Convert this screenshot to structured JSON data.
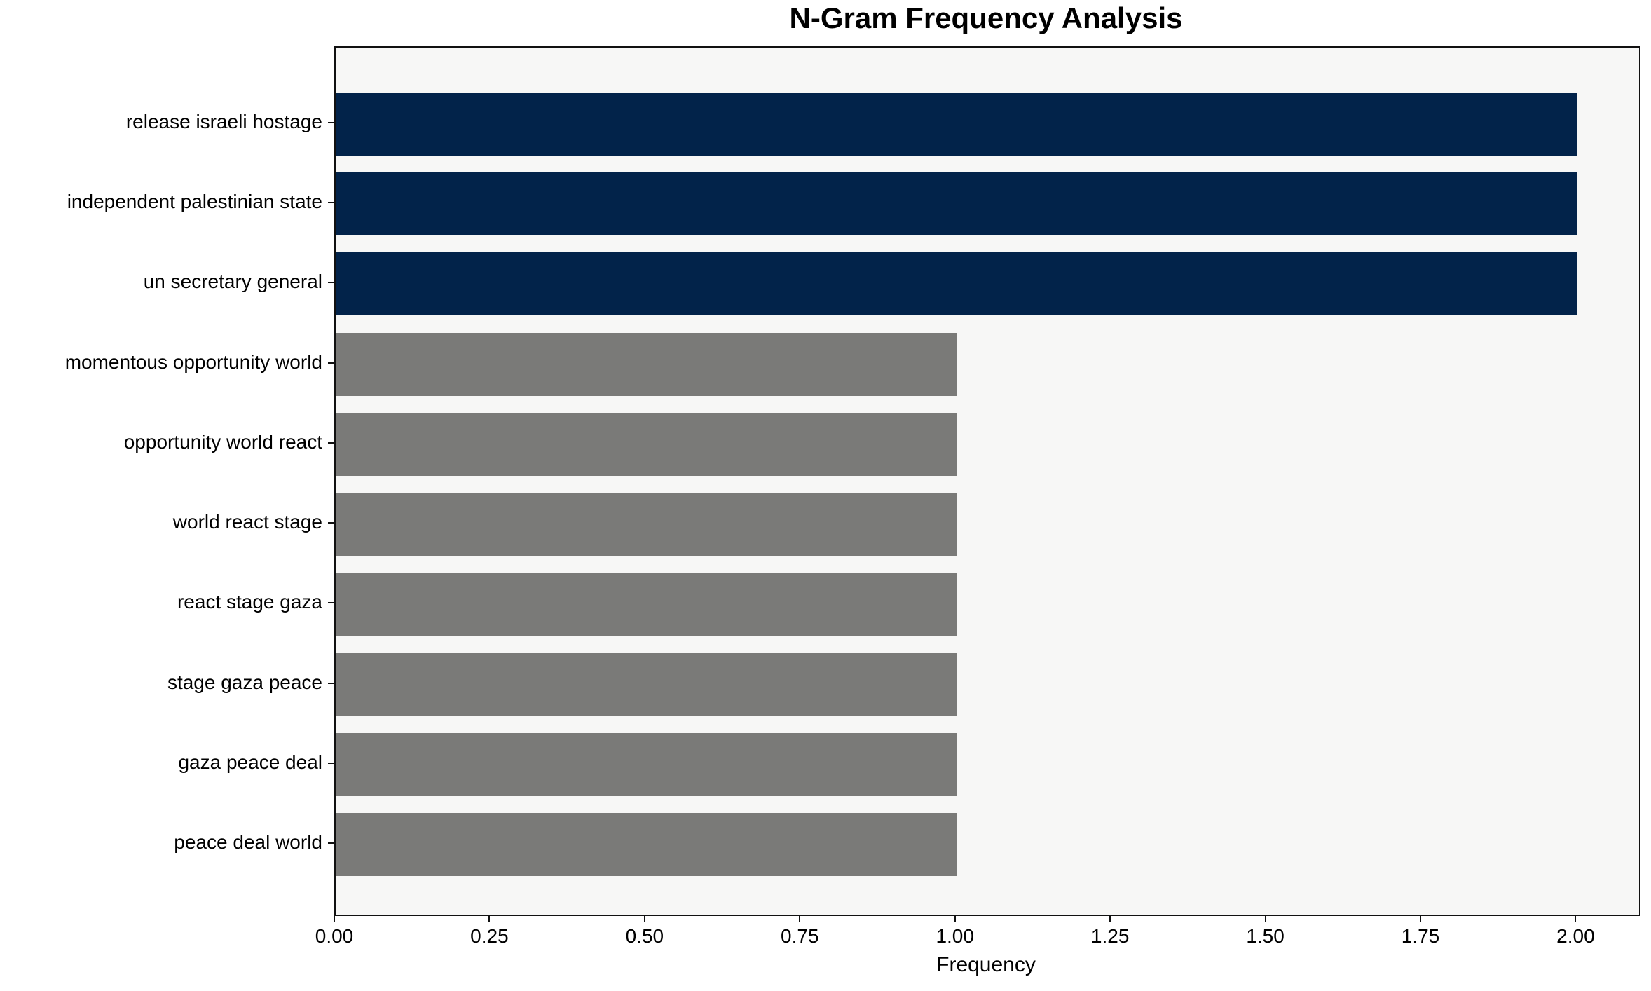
{
  "title": "N-Gram Frequency Analysis",
  "chart_data": {
    "type": "bar",
    "orientation": "horizontal",
    "title": "N-Gram Frequency Analysis",
    "xlabel": "Frequency",
    "ylabel": "",
    "categories": [
      "release israeli hostage",
      "independent palestinian state",
      "un secretary general",
      "momentous opportunity world",
      "opportunity world react",
      "world react stage",
      "react stage gaza",
      "stage gaza peace",
      "gaza peace deal",
      "peace deal world"
    ],
    "values": [
      2,
      2,
      2,
      1,
      1,
      1,
      1,
      1,
      1,
      1
    ],
    "xlim": [
      0,
      2.1
    ],
    "xticks": [
      0,
      0.25,
      0.5,
      0.75,
      1.0,
      1.25,
      1.5,
      1.75,
      2.0
    ],
    "xtick_labels": [
      "0.00",
      "0.25",
      "0.50",
      "0.75",
      "1.00",
      "1.25",
      "1.50",
      "1.75",
      "2.00"
    ],
    "grid": false,
    "legend": "none",
    "bar_colors": [
      "#02234a",
      "#02234a",
      "#02234a",
      "#7a7a78",
      "#7a7a78",
      "#7a7a78",
      "#7a7a78",
      "#7a7a78",
      "#7a7a78",
      "#7a7a78"
    ],
    "colors": {
      "highlight_navy": "#02234a",
      "default_gray": "#7a7a78",
      "plot_background": "#f7f7f6",
      "axis": "#111111"
    }
  }
}
